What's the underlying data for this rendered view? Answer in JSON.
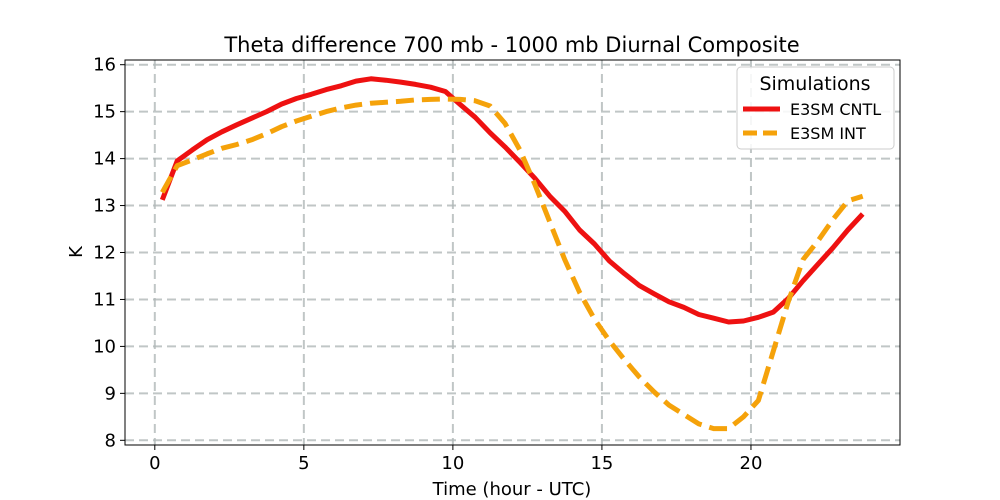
{
  "chart_data": {
    "type": "line",
    "title": "Theta difference 700 mb - 1000 mb Diurnal Composite",
    "xlabel": "Time (hour - UTC)",
    "ylabel": "K",
    "xlim": [
      -1,
      25
    ],
    "ylim": [
      7.9,
      16.1
    ],
    "xticks": [
      0,
      5,
      10,
      15,
      20
    ],
    "yticks": [
      8,
      9,
      10,
      11,
      12,
      13,
      14,
      15,
      16
    ],
    "grid": true,
    "legend": {
      "title": "Simulations",
      "position": "top-right"
    },
    "x": [
      0.25,
      0.75,
      1.25,
      1.75,
      2.25,
      2.75,
      3.25,
      3.75,
      4.25,
      4.75,
      5.25,
      5.75,
      6.25,
      6.75,
      7.25,
      7.75,
      8.25,
      8.75,
      9.25,
      9.75,
      10.25,
      10.75,
      11.25,
      11.75,
      12.25,
      12.75,
      13.25,
      13.75,
      14.25,
      14.75,
      15.25,
      15.75,
      16.25,
      16.75,
      17.25,
      17.75,
      18.25,
      18.75,
      19.25,
      19.75,
      20.25,
      20.75,
      21.25,
      21.75,
      22.25,
      22.75,
      23.25,
      23.75
    ],
    "series": [
      {
        "name": "E3SM CNTL",
        "color": "#ee1111",
        "dash": "solid",
        "values": [
          13.12,
          13.95,
          14.18,
          14.4,
          14.57,
          14.72,
          14.86,
          15.0,
          15.16,
          15.28,
          15.37,
          15.47,
          15.55,
          15.65,
          15.7,
          15.67,
          15.63,
          15.58,
          15.52,
          15.43,
          15.15,
          14.88,
          14.55,
          14.25,
          13.92,
          13.58,
          13.2,
          12.88,
          12.48,
          12.18,
          11.82,
          11.55,
          11.3,
          11.12,
          10.95,
          10.83,
          10.68,
          10.6,
          10.52,
          10.54,
          10.62,
          10.73,
          11.02,
          11.4,
          11.75,
          12.1,
          12.48,
          12.82
        ]
      },
      {
        "name": "E3SM INT",
        "color": "#f5a20a",
        "dash": "dashed",
        "values": [
          13.28,
          13.85,
          13.97,
          14.1,
          14.22,
          14.3,
          14.4,
          14.53,
          14.68,
          14.8,
          14.9,
          15.0,
          15.08,
          15.14,
          15.18,
          15.2,
          15.22,
          15.25,
          15.26,
          15.27,
          15.26,
          15.23,
          15.12,
          14.75,
          14.18,
          13.45,
          12.65,
          11.85,
          11.15,
          10.58,
          10.12,
          9.72,
          9.35,
          9.03,
          8.75,
          8.55,
          8.35,
          8.25,
          8.25,
          8.5,
          8.85,
          9.9,
          10.95,
          11.85,
          12.25,
          12.7,
          13.1,
          13.2
        ]
      }
    ]
  }
}
